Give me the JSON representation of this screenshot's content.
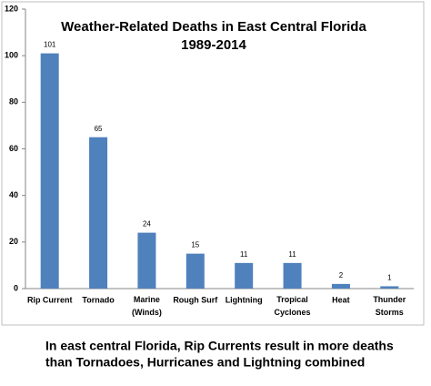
{
  "chart_data": {
    "type": "bar",
    "title": "Weather-Related Deaths in East Central Florida",
    "subtitle": "1989-2014",
    "categories": [
      "Rip Current",
      "Tornado",
      "Marine (Winds)",
      "Rough Surf",
      "Lightning",
      "Tropical Cyclones",
      "Heat",
      "Thunder Storms"
    ],
    "values": [
      101,
      65,
      24,
      15,
      11,
      11,
      2,
      1
    ],
    "color": "#4f81bd",
    "ylim": [
      0,
      120
    ],
    "yticks": [
      0,
      20,
      40,
      60,
      80,
      100,
      120
    ],
    "grid": false
  },
  "caption": [
    "In east central Florida, Rip Currents result in more deaths",
    "than Tornadoes, Hurricanes and Lightning combined"
  ]
}
